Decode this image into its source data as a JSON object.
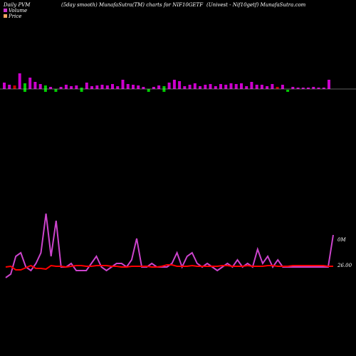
{
  "header": {
    "left": "Daily PVM",
    "middle": "(5day smooth) MunafaSutra(TM) charts for NIF10GETF",
    "right": "(Univest - Nif10getf) MunafaSutra.com"
  },
  "legend": {
    "volume_label": "Volume",
    "price_label": "Price",
    "volume_color": "#cc33cc",
    "price_color": "#f4a460"
  },
  "colors": {
    "background": "#000000",
    "bar_up": "#cc00cc",
    "bar_down": "#00cc00",
    "bar_neutral": "#cc0000",
    "volume_line": "#cc44cc",
    "price_line": "#ff0000",
    "baseline": "#c0c0c0"
  },
  "chart_data": {
    "type": "bar",
    "title": "",
    "axis_labels": {
      "volume": "0M",
      "price": "26.00"
    },
    "volume_bars": [
      {
        "v": 9,
        "dir": "up"
      },
      {
        "v": 6,
        "dir": "up"
      },
      {
        "v": 5,
        "dir": "neutral"
      },
      {
        "v": 22,
        "dir": "up"
      },
      {
        "v": 12,
        "dir": "down"
      },
      {
        "v": 16,
        "dir": "up"
      },
      {
        "v": 10,
        "dir": "up"
      },
      {
        "v": 7,
        "dir": "up"
      },
      {
        "v": 9,
        "dir": "down"
      },
      {
        "v": 3,
        "dir": "up"
      },
      {
        "v": 4,
        "dir": "down"
      },
      {
        "v": 3,
        "dir": "up"
      },
      {
        "v": 6,
        "dir": "up"
      },
      {
        "v": 4,
        "dir": "up"
      },
      {
        "v": 5,
        "dir": "up"
      },
      {
        "v": 6,
        "dir": "down"
      },
      {
        "v": 9,
        "dir": "up"
      },
      {
        "v": 4,
        "dir": "up"
      },
      {
        "v": 5,
        "dir": "up"
      },
      {
        "v": 6,
        "dir": "up"
      },
      {
        "v": 5,
        "dir": "up"
      },
      {
        "v": 7,
        "dir": "up"
      },
      {
        "v": 4,
        "dir": "up"
      },
      {
        "v": 13,
        "dir": "up"
      },
      {
        "v": 7,
        "dir": "up"
      },
      {
        "v": 6,
        "dir": "up"
      },
      {
        "v": 5,
        "dir": "up"
      },
      {
        "v": 3,
        "dir": "up"
      },
      {
        "v": 4,
        "dir": "down"
      },
      {
        "v": 3,
        "dir": "up"
      },
      {
        "v": 5,
        "dir": "up"
      },
      {
        "v": 8,
        "dir": "down"
      },
      {
        "v": 9,
        "dir": "up"
      },
      {
        "v": 13,
        "dir": "up"
      },
      {
        "v": 11,
        "dir": "up"
      },
      {
        "v": 4,
        "dir": "up"
      },
      {
        "v": 6,
        "dir": "up"
      },
      {
        "v": 8,
        "dir": "up"
      },
      {
        "v": 4,
        "dir": "up"
      },
      {
        "v": 6,
        "dir": "up"
      },
      {
        "v": 7,
        "dir": "up"
      },
      {
        "v": 4,
        "dir": "up"
      },
      {
        "v": 7,
        "dir": "up"
      },
      {
        "v": 6,
        "dir": "up"
      },
      {
        "v": 8,
        "dir": "up"
      },
      {
        "v": 7,
        "dir": "up"
      },
      {
        "v": 8,
        "dir": "up"
      },
      {
        "v": 4,
        "dir": "up"
      },
      {
        "v": 10,
        "dir": "up"
      },
      {
        "v": 6,
        "dir": "up"
      },
      {
        "v": 6,
        "dir": "up"
      },
      {
        "v": 4,
        "dir": "up"
      },
      {
        "v": 7,
        "dir": "up"
      },
      {
        "v": 3,
        "dir": "neutral"
      },
      {
        "v": 6,
        "dir": "up"
      },
      {
        "v": 3,
        "dir": "down"
      },
      {
        "v": 3,
        "dir": "up"
      },
      {
        "v": 2,
        "dir": "up"
      },
      {
        "v": 2,
        "dir": "up"
      },
      {
        "v": 2,
        "dir": "up"
      },
      {
        "v": 3,
        "dir": "up"
      },
      {
        "v": 2,
        "dir": "up"
      },
      {
        "v": 2,
        "dir": "up"
      },
      {
        "v": 13,
        "dir": "up"
      }
    ],
    "volume_line": [
      40,
      45,
      70,
      75,
      55,
      50,
      60,
      75,
      130,
      70,
      120,
      55,
      55,
      60,
      50,
      50,
      50,
      60,
      70,
      55,
      50,
      55,
      60,
      60,
      55,
      65,
      95,
      55,
      55,
      60,
      55,
      55,
      55,
      60,
      75,
      55,
      70,
      75,
      60,
      55,
      60,
      55,
      50,
      55,
      60,
      55,
      65,
      55,
      60,
      55,
      80,
      60,
      70,
      55,
      65,
      55,
      55,
      55,
      55,
      55,
      55,
      55,
      55,
      55,
      55,
      100
    ],
    "price_line": [
      50,
      51,
      46,
      46,
      49,
      52,
      48,
      48,
      47,
      52,
      51,
      51,
      50,
      51,
      52,
      52,
      51,
      51,
      52,
      52,
      52,
      51,
      51,
      50,
      50,
      51,
      51,
      51,
      51,
      50,
      50,
      51,
      53,
      53,
      51,
      51,
      51,
      52,
      51,
      51,
      51,
      51,
      51,
      52,
      52,
      51,
      51,
      51,
      52,
      51,
      51,
      51,
      52,
      52,
      51,
      51,
      51,
      52,
      52,
      52,
      52,
      52,
      52,
      52,
      51,
      51
    ]
  }
}
